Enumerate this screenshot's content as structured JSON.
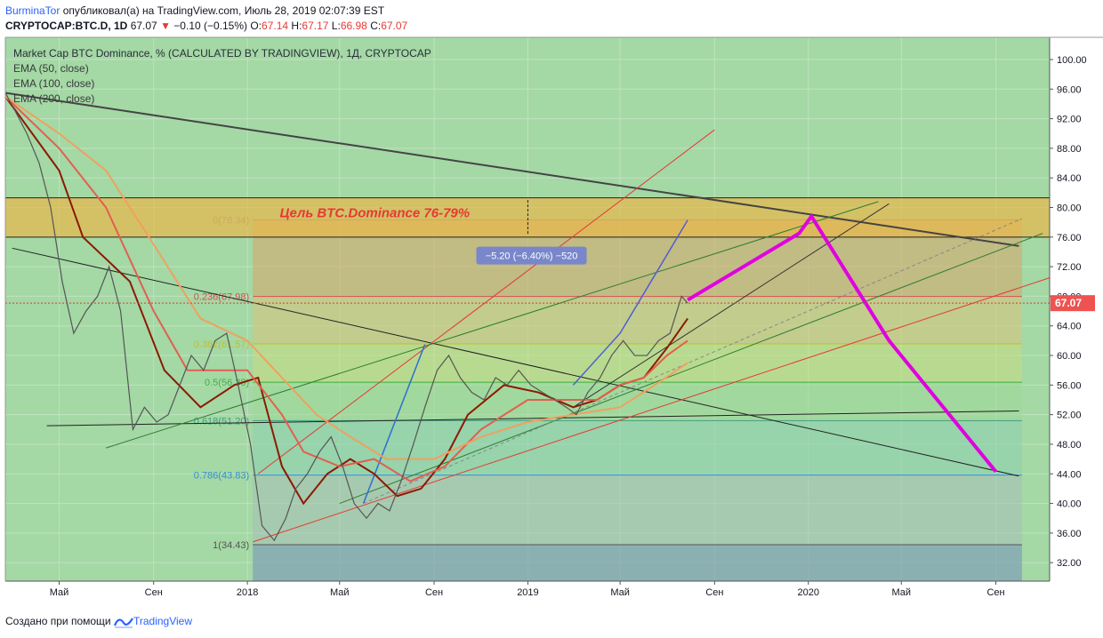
{
  "header": {
    "user": "BurminaTor",
    "published": "опубликовал(а) на TradingView.com, Июль 28, 2019 02:07:39 EST",
    "symbol": "CRYPTOCAP:BTC.D, 1D",
    "last": "67.07",
    "change": "−0.10 (−0.15%)",
    "o_label": "O:",
    "o": "67.14",
    "h_label": "H:",
    "h": "67.17",
    "l_label": "L:",
    "l": "66.98",
    "c_label": "C:",
    "c": "67.07"
  },
  "legend": {
    "title": "Market Cap BTC Dominance, % (CALCULATED BY TRADINGVIEW), 1Д, CRYPTOCAP",
    "ema50": "EMA (50, close)",
    "ema100": "EMA (100, close)",
    "ema200": "EMA (200, close)"
  },
  "footer": {
    "created_with": "Создано при помощи",
    "brand": "TradingView"
  },
  "colors": {
    "background": "#a4d8a5",
    "price_tag": "#ef5350",
    "ema50": "#8b1a00",
    "ema100": "#e06050",
    "ema200": "#f0a060",
    "target_path": "#e000e0",
    "target_zone": "#e8b84a"
  },
  "chart_data": {
    "type": "line",
    "title": "Market Cap BTC Dominance, % (CALCULATED BY TRADINGVIEW), 1Д, CRYPTOCAP",
    "y_axis": {
      "range": [
        29.5,
        103
      ],
      "ticks": [
        "100.00",
        "96.00",
        "92.00",
        "88.00",
        "84.00",
        "80.00",
        "76.00",
        "72.00",
        "68.00",
        "64.00",
        "60.00",
        "56.00",
        "52.00",
        "48.00",
        "44.00",
        "40.00",
        "36.00",
        "32.00"
      ],
      "position": "right"
    },
    "x_axis": {
      "ticks": [
        "Май",
        "Сен",
        "2018",
        "Май",
        "Сен",
        "2019",
        "Май",
        "Сен",
        "2020",
        "Май",
        "Сен"
      ],
      "tick_dates": [
        "2017-05-01",
        "2017-09-01",
        "2018-01-01",
        "2018-05-01",
        "2018-09-01",
        "2019-01-01",
        "2019-05-01",
        "2019-09-01",
        "2020-01-01",
        "2020-05-01",
        "2020-09-01"
      ],
      "range": [
        "2017-02-20",
        "2020-11-10"
      ]
    },
    "last_price": "67.07",
    "price_series": {
      "name": "BTC.D",
      "x": [
        "2017-02-20",
        "2017-03-05",
        "2017-03-20",
        "2017-04-05",
        "2017-04-20",
        "2017-05-05",
        "2017-05-20",
        "2017-06-05",
        "2017-06-20",
        "2017-07-05",
        "2017-07-20",
        "2017-08-05",
        "2017-08-20",
        "2017-09-05",
        "2017-09-20",
        "2017-10-05",
        "2017-10-20",
        "2017-11-05",
        "2017-11-20",
        "2017-12-05",
        "2017-12-20",
        "2018-01-05",
        "2018-01-20",
        "2018-02-05",
        "2018-02-20",
        "2018-03-05",
        "2018-03-20",
        "2018-04-05",
        "2018-04-20",
        "2018-05-05",
        "2018-05-20",
        "2018-06-05",
        "2018-06-20",
        "2018-07-05",
        "2018-07-20",
        "2018-08-05",
        "2018-08-20",
        "2018-09-05",
        "2018-09-20",
        "2018-10-05",
        "2018-10-20",
        "2018-11-05",
        "2018-11-20",
        "2018-12-05",
        "2018-12-20",
        "2019-01-05",
        "2019-01-20",
        "2019-02-05",
        "2019-02-20",
        "2019-03-05",
        "2019-03-20",
        "2019-04-05",
        "2019-04-20",
        "2019-05-05",
        "2019-05-20",
        "2019-06-05",
        "2019-06-20",
        "2019-07-05",
        "2019-07-20",
        "2019-07-28"
      ],
      "values": [
        95.5,
        93,
        90,
        86,
        80,
        70,
        63,
        66,
        68,
        72,
        66,
        50,
        53,
        51,
        52,
        56,
        60,
        58,
        62,
        63,
        56,
        48,
        37,
        35,
        38,
        42,
        44,
        47,
        49,
        45,
        40,
        38,
        40,
        39,
        43,
        48,
        53,
        58,
        60,
        57,
        55,
        54,
        57,
        56,
        58,
        56,
        55,
        54,
        53,
        52,
        55,
        57,
        60,
        62,
        60,
        60,
        62,
        63,
        68,
        67.07
      ]
    },
    "series": [
      {
        "name": "EMA (50, close)",
        "x": [
          "2017-02-20",
          "2017-05-01",
          "2017-06-01",
          "2017-08-01",
          "2017-09-15",
          "2017-11-01",
          "2017-12-15",
          "2018-01-15",
          "2018-02-15",
          "2018-03-15",
          "2018-04-15",
          "2018-05-15",
          "2018-06-15",
          "2018-07-15",
          "2018-08-15",
          "2018-09-15",
          "2018-10-15",
          "2018-12-01",
          "2019-01-15",
          "2019-03-01",
          "2019-04-01",
          "2019-05-01",
          "2019-06-01",
          "2019-07-01",
          "2019-07-28"
        ],
        "values": [
          95,
          85,
          76,
          70,
          58,
          53,
          56,
          57,
          45,
          40,
          44,
          46,
          44,
          41,
          42,
          46,
          52,
          56,
          55,
          53,
          54,
          56,
          57,
          61,
          65
        ]
      },
      {
        "name": "EMA (100, close)",
        "x": [
          "2017-02-20",
          "2017-05-01",
          "2017-07-01",
          "2017-09-01",
          "2017-10-15",
          "2017-12-01",
          "2018-01-01",
          "2018-02-15",
          "2018-03-15",
          "2018-05-01",
          "2018-06-15",
          "2018-08-01",
          "2018-09-15",
          "2018-11-01",
          "2019-01-01",
          "2019-03-01",
          "2019-04-01",
          "2019-05-01",
          "2019-06-01",
          "2019-07-01",
          "2019-07-28"
        ],
        "values": [
          95,
          88,
          80,
          66,
          58,
          58,
          58,
          52,
          47,
          45,
          46,
          43,
          45,
          50,
          54,
          54,
          54,
          56,
          57,
          60,
          62
        ]
      },
      {
        "name": "EMA (200, close)",
        "x": [
          "2017-02-20",
          "2017-05-01",
          "2017-07-01",
          "2017-09-01",
          "2017-11-01",
          "2018-01-01",
          "2018-02-15",
          "2018-04-01",
          "2018-05-15",
          "2018-07-01",
          "2018-09-01",
          "2018-11-01",
          "2019-01-01",
          "2019-03-01",
          "2019-05-01",
          "2019-06-15",
          "2019-07-28"
        ],
        "values": [
          95,
          90,
          85,
          75,
          65,
          62,
          57,
          52,
          49,
          46,
          46,
          49,
          51,
          52,
          53,
          56,
          59
        ]
      }
    ],
    "fibonacci": [
      {
        "level": "0",
        "value": 78.34,
        "label": "0(78.34)"
      },
      {
        "level": "0.236",
        "value": 67.98,
        "label": "0.236(67.98)"
      },
      {
        "level": "0.382",
        "value": 61.57,
        "label": "0.382(61.57)"
      },
      {
        "level": "0.5",
        "value": 56.38,
        "label": "0.5(56.38)"
      },
      {
        "level": "0.618",
        "value": 51.2,
        "label": "0.618(51.20)"
      },
      {
        "level": "0.786",
        "value": 43.83,
        "label": "0.786(43.83)"
      },
      {
        "level": "1",
        "value": 34.43,
        "label": "1(34.43)"
      }
    ],
    "target_zone": {
      "low": 76,
      "high": 81.3,
      "label": "Цель BTC.Dominance 76-79%"
    },
    "measure_label": "−5.20 (−6.40%) −520",
    "projection": {
      "x": [
        "2019-07-28",
        "2019-12-20",
        "2020-01-05",
        "2020-04-15",
        "2020-09-01"
      ],
      "values": [
        67.5,
        76.5,
        78.8,
        62,
        44.3
      ]
    }
  }
}
